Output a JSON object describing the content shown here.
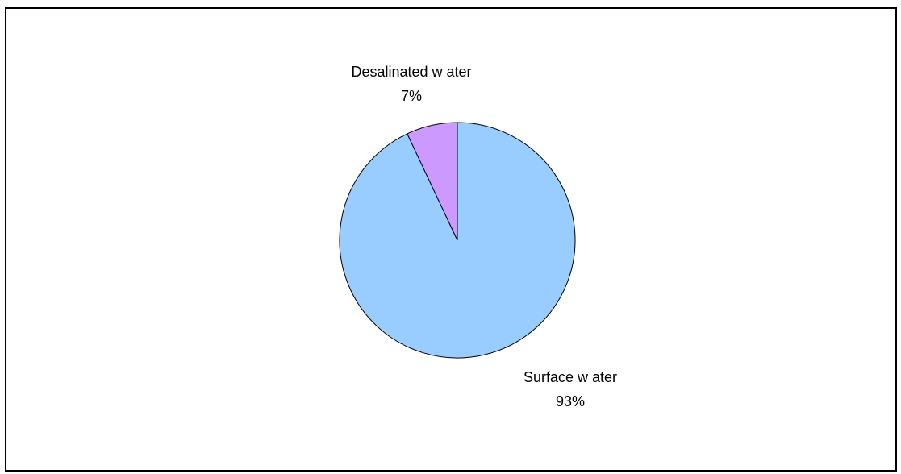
{
  "chart_data": {
    "type": "pie",
    "title": "",
    "start_angle_deg": 0,
    "direction": "clockwise",
    "slices": [
      {
        "label": "Surface w ater",
        "value": 93,
        "percent_label": "93%",
        "color": "#99ccff"
      },
      {
        "label": "Desalinated w ater",
        "value": 7,
        "percent_label": "7%",
        "color": "#cc99ff"
      }
    ],
    "legend": "none",
    "edge_color": "#000000"
  }
}
